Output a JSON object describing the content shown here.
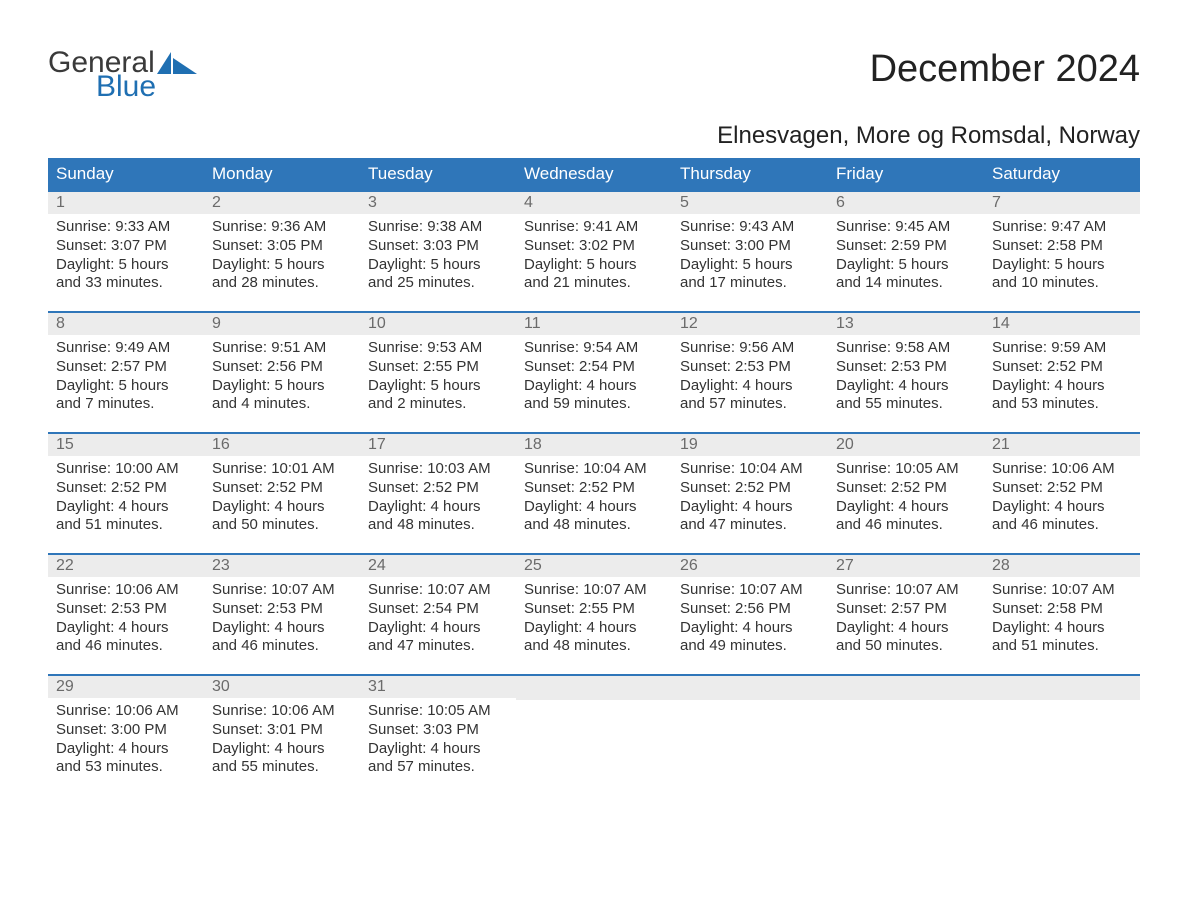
{
  "brand": {
    "general": "General",
    "blue": "Blue"
  },
  "title": "December 2024",
  "location": "Elnesvagen, More og Romsdal, Norway",
  "colors": {
    "header_bg": "#2f76b9",
    "header_text": "#ffffff",
    "daynum_bg": "#ececec",
    "daynum_text": "#6b6b6b",
    "body_text": "#333333",
    "brand_blue": "#1f6fb2",
    "page_bg": "#ffffff"
  },
  "weekdays": [
    "Sunday",
    "Monday",
    "Tuesday",
    "Wednesday",
    "Thursday",
    "Friday",
    "Saturday"
  ],
  "labels": {
    "sunrise": "Sunrise: ",
    "sunset": "Sunset: ",
    "daylight": "Daylight: "
  },
  "days": [
    {
      "n": 1,
      "sunrise": "9:33 AM",
      "sunset": "3:07 PM",
      "daylight": "5 hours and 33 minutes."
    },
    {
      "n": 2,
      "sunrise": "9:36 AM",
      "sunset": "3:05 PM",
      "daylight": "5 hours and 28 minutes."
    },
    {
      "n": 3,
      "sunrise": "9:38 AM",
      "sunset": "3:03 PM",
      "daylight": "5 hours and 25 minutes."
    },
    {
      "n": 4,
      "sunrise": "9:41 AM",
      "sunset": "3:02 PM",
      "daylight": "5 hours and 21 minutes."
    },
    {
      "n": 5,
      "sunrise": "9:43 AM",
      "sunset": "3:00 PM",
      "daylight": "5 hours and 17 minutes."
    },
    {
      "n": 6,
      "sunrise": "9:45 AM",
      "sunset": "2:59 PM",
      "daylight": "5 hours and 14 minutes."
    },
    {
      "n": 7,
      "sunrise": "9:47 AM",
      "sunset": "2:58 PM",
      "daylight": "5 hours and 10 minutes."
    },
    {
      "n": 8,
      "sunrise": "9:49 AM",
      "sunset": "2:57 PM",
      "daylight": "5 hours and 7 minutes."
    },
    {
      "n": 9,
      "sunrise": "9:51 AM",
      "sunset": "2:56 PM",
      "daylight": "5 hours and 4 minutes."
    },
    {
      "n": 10,
      "sunrise": "9:53 AM",
      "sunset": "2:55 PM",
      "daylight": "5 hours and 2 minutes."
    },
    {
      "n": 11,
      "sunrise": "9:54 AM",
      "sunset": "2:54 PM",
      "daylight": "4 hours and 59 minutes."
    },
    {
      "n": 12,
      "sunrise": "9:56 AM",
      "sunset": "2:53 PM",
      "daylight": "4 hours and 57 minutes."
    },
    {
      "n": 13,
      "sunrise": "9:58 AM",
      "sunset": "2:53 PM",
      "daylight": "4 hours and 55 minutes."
    },
    {
      "n": 14,
      "sunrise": "9:59 AM",
      "sunset": "2:52 PM",
      "daylight": "4 hours and 53 minutes."
    },
    {
      "n": 15,
      "sunrise": "10:00 AM",
      "sunset": "2:52 PM",
      "daylight": "4 hours and 51 minutes."
    },
    {
      "n": 16,
      "sunrise": "10:01 AM",
      "sunset": "2:52 PM",
      "daylight": "4 hours and 50 minutes."
    },
    {
      "n": 17,
      "sunrise": "10:03 AM",
      "sunset": "2:52 PM",
      "daylight": "4 hours and 48 minutes."
    },
    {
      "n": 18,
      "sunrise": "10:04 AM",
      "sunset": "2:52 PM",
      "daylight": "4 hours and 48 minutes."
    },
    {
      "n": 19,
      "sunrise": "10:04 AM",
      "sunset": "2:52 PM",
      "daylight": "4 hours and 47 minutes."
    },
    {
      "n": 20,
      "sunrise": "10:05 AM",
      "sunset": "2:52 PM",
      "daylight": "4 hours and 46 minutes."
    },
    {
      "n": 21,
      "sunrise": "10:06 AM",
      "sunset": "2:52 PM",
      "daylight": "4 hours and 46 minutes."
    },
    {
      "n": 22,
      "sunrise": "10:06 AM",
      "sunset": "2:53 PM",
      "daylight": "4 hours and 46 minutes."
    },
    {
      "n": 23,
      "sunrise": "10:07 AM",
      "sunset": "2:53 PM",
      "daylight": "4 hours and 46 minutes."
    },
    {
      "n": 24,
      "sunrise": "10:07 AM",
      "sunset": "2:54 PM",
      "daylight": "4 hours and 47 minutes."
    },
    {
      "n": 25,
      "sunrise": "10:07 AM",
      "sunset": "2:55 PM",
      "daylight": "4 hours and 48 minutes."
    },
    {
      "n": 26,
      "sunrise": "10:07 AM",
      "sunset": "2:56 PM",
      "daylight": "4 hours and 49 minutes."
    },
    {
      "n": 27,
      "sunrise": "10:07 AM",
      "sunset": "2:57 PM",
      "daylight": "4 hours and 50 minutes."
    },
    {
      "n": 28,
      "sunrise": "10:07 AM",
      "sunset": "2:58 PM",
      "daylight": "4 hours and 51 minutes."
    },
    {
      "n": 29,
      "sunrise": "10:06 AM",
      "sunset": "3:00 PM",
      "daylight": "4 hours and 53 minutes."
    },
    {
      "n": 30,
      "sunrise": "10:06 AM",
      "sunset": "3:01 PM",
      "daylight": "4 hours and 55 minutes."
    },
    {
      "n": 31,
      "sunrise": "10:05 AM",
      "sunset": "3:03 PM",
      "daylight": "4 hours and 57 minutes."
    }
  ],
  "grid": {
    "start_weekday": 0,
    "total_cells": 35
  }
}
